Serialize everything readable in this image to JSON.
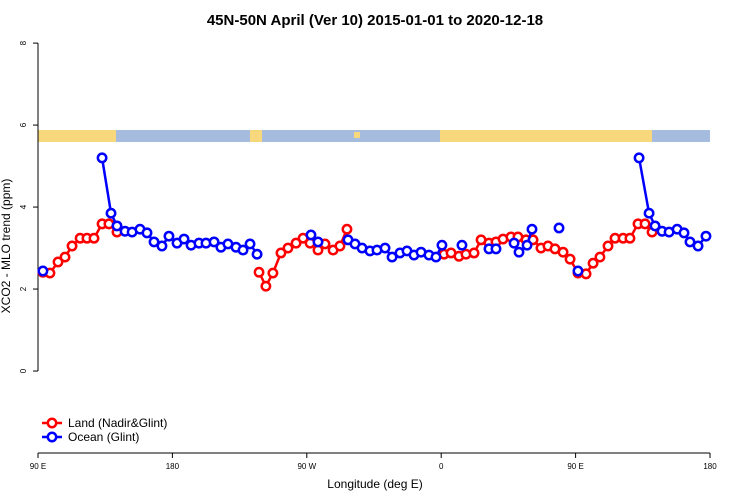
{
  "chart_data": {
    "type": "line",
    "title": "45N-50N April (Ver 10)   2015-01-01 to 2020-12-18",
    "xlabel": "Longitude (deg E)",
    "ylabel": "XCO2 - MLO trend (ppm)",
    "xlim": [
      90,
      540
    ],
    "xticks": [
      {
        "value": 90,
        "label": "90 E"
      },
      180,
      {
        "value": 270,
        "label": "90 W"
      },
      {
        "value": 360,
        "label": "0"
      },
      {
        "value": 450,
        "label": "90 E"
      },
      {
        "value": 540,
        "label": "180"
      }
    ],
    "ylim": [
      -2,
      8.1
    ],
    "yticks": [
      0,
      2,
      4,
      6,
      8
    ],
    "legend": "bottomleft",
    "series": [
      {
        "name": "Land (Nadir&Glint)",
        "color": "#ff0000",
        "x": [
          93.3,
          98.0,
          103.4,
          108.1,
          112.8,
          118.2,
          122.8,
          127.5,
          132.9,
          137.5,
          142.9,
          238.0,
          242.6,
          247.3,
          252.7,
          257.4,
          262.8,
          267.5,
          272.2,
          277.5,
          282.2,
          287.6,
          292.2,
          296.9,
          361.9,
          366.6,
          371.9,
          376.6,
          382.0,
          386.7,
          392.0,
          396.7,
          401.4,
          406.7,
          411.4,
          416.8,
          421.5,
          426.8,
          431.5,
          436.2,
          441.6,
          446.3,
          451.6,
          457.0,
          461.7,
          466.3,
          471.7,
          476.4,
          481.8,
          486.4,
          491.8,
          496.5,
          501.2
        ],
        "values": [
          2.41,
          2.39,
          2.66,
          2.78,
          3.05,
          3.24,
          3.24,
          3.24,
          3.59,
          3.59,
          3.39,
          2.41,
          2.07,
          2.39,
          2.88,
          3.0,
          3.12,
          3.24,
          3.12,
          2.95,
          3.1,
          2.95,
          3.05,
          3.46,
          2.85,
          2.88,
          2.8,
          2.85,
          2.88,
          3.2,
          3.12,
          3.15,
          3.22,
          3.27,
          3.27,
          3.2,
          3.2,
          3.0,
          3.05,
          2.98,
          2.9,
          2.73,
          2.39,
          2.37,
          2.63,
          2.78,
          3.05,
          3.24,
          3.24,
          3.24,
          3.59,
          3.59,
          3.39
        ]
      },
      {
        "name": "Ocean (Glint)",
        "color": "#0000ff",
        "x": [
          93.3,
          132.9,
          138.9,
          142.9,
          148.3,
          153.0,
          158.3,
          163.0,
          167.7,
          173.0,
          177.7,
          183.1,
          187.8,
          192.5,
          197.8,
          202.5,
          207.9,
          212.5,
          217.2,
          222.6,
          227.3,
          232.0,
          236.7,
          272.8,
          277.5,
          297.6,
          302.3,
          307.0,
          312.3,
          317.0,
          322.4,
          327.1,
          332.4,
          337.1,
          341.8,
          346.5,
          351.8,
          356.5,
          360.5,
          373.9,
          392.0,
          396.7,
          408.8,
          412.1,
          417.5,
          420.8,
          438.9,
          451.6,
          492.5,
          499.2,
          503.2,
          507.9,
          512.6,
          518.0,
          522.6,
          526.6,
          532.0,
          537.3
        ],
        "values": [
          2.44,
          5.2,
          3.85,
          3.54,
          3.41,
          3.39,
          3.46,
          3.37,
          3.15,
          3.05,
          3.29,
          3.12,
          3.22,
          3.07,
          3.12,
          3.12,
          3.15,
          3.02,
          3.1,
          3.02,
          2.95,
          3.1,
          2.85,
          3.32,
          3.15,
          3.2,
          3.1,
          3.0,
          2.93,
          2.95,
          3.0,
          2.78,
          2.88,
          2.93,
          2.83,
          2.9,
          2.83,
          2.78,
          3.07,
          3.07,
          2.98,
          2.98,
          3.12,
          2.9,
          3.07,
          3.46,
          3.49,
          2.44,
          5.2,
          3.85,
          3.54,
          3.41,
          3.39,
          3.46,
          3.37,
          3.15,
          3.05,
          3.29
        ]
      }
    ]
  }
}
